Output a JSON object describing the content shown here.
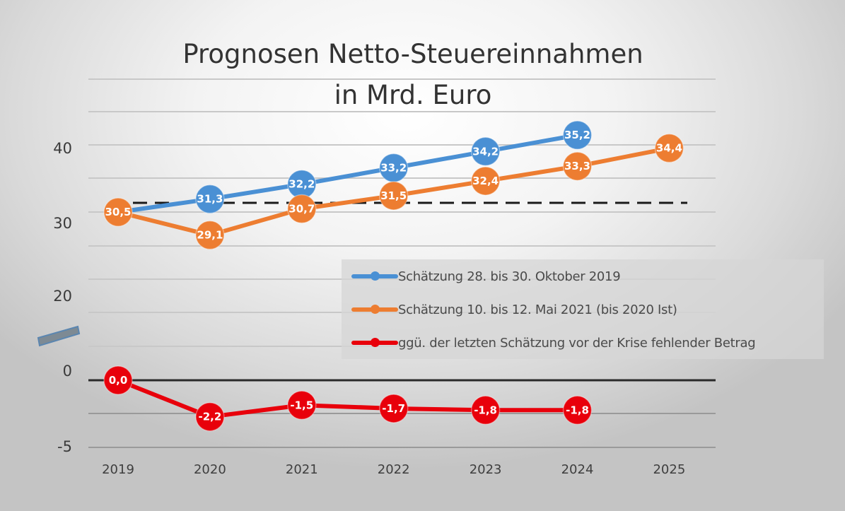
{
  "chart_data": {
    "type": "line",
    "title": [
      "Prognosen Netto-Steuereinnahmen",
      "in Mrd. Euro"
    ],
    "xlabel": "",
    "ylabel": "",
    "categories": [
      "2019",
      "2020",
      "2021",
      "2022",
      "2023",
      "2024",
      "2025"
    ],
    "y_ticks": [
      "40",
      "30",
      "20",
      "0",
      "-5"
    ],
    "axis_break": true,
    "grid": true,
    "legend_position": "center-right",
    "series": [
      {
        "name": "Schätzung 28. bis 30. Oktober 2019",
        "color": "#4a90d4",
        "values": [
          30.5,
          31.3,
          32.2,
          33.2,
          34.2,
          35.2,
          null
        ],
        "labels": [
          "",
          "31,3",
          "32,2",
          "33,2",
          "34,2",
          "35,2",
          ""
        ]
      },
      {
        "name": "Schätzung 10. bis 12. Mai 2021 (bis 2020 Ist)",
        "color": "#ed7d31",
        "values": [
          30.5,
          29.1,
          30.7,
          31.5,
          32.4,
          33.3,
          34.4
        ],
        "labels": [
          "30,5",
          "29,1",
          "30,7",
          "31,5",
          "32,4",
          "33,3",
          "34,4"
        ]
      },
      {
        "name": "ggü. der letzten Schätzung vor der Krise fehlender Betrag",
        "color": "#e8000b",
        "values": [
          0.0,
          -2.2,
          -1.5,
          -1.7,
          -1.8,
          -1.8,
          null
        ],
        "labels": [
          "0,0",
          "-2,2",
          "-1,5",
          "-1,7",
          "-1,8",
          "-1,8",
          ""
        ]
      }
    ],
    "reference_line": {
      "style": "dashed",
      "value": 30.7,
      "color": "#1a1a1a"
    }
  }
}
